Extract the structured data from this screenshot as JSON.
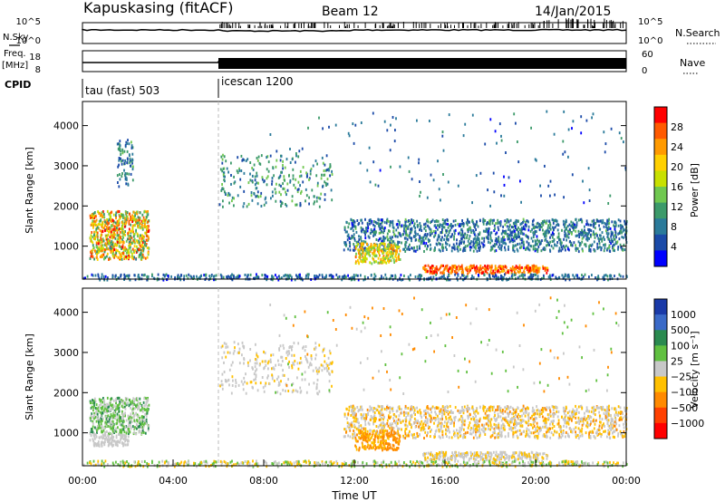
{
  "header": {
    "station": "Kapuskasing (fitACF)",
    "beam": "Beam 12",
    "date": "14/Jan/2015"
  },
  "top_panels": {
    "nsky_label": "N.Sky",
    "nsky_ticks": [
      "10^5",
      "10^0"
    ],
    "nsearch_label": "N.Search",
    "nsearch_ticks": [
      "10^5",
      "10^0"
    ],
    "freq_label": "Freq.",
    "freq_unit": "[MHz]",
    "freq_ticks": [
      "18",
      "8"
    ],
    "nave_label": "Nave",
    "nave_ticks": [
      "60",
      "0"
    ],
    "cpid_label": "CPID",
    "cpid_segments": [
      {
        "label": "tau (fast) 503",
        "start_hour": 0
      },
      {
        "label": "icescan 1200",
        "start_hour": 6
      }
    ]
  },
  "chart_data": [
    {
      "type": "heatmap",
      "title": "",
      "xlabel": "",
      "ylabel": "Slant Range [km]",
      "xlim": [
        0,
        24
      ],
      "ylim": [
        180,
        4600
      ],
      "x_ticks": [
        "00:00",
        "04:00",
        "08:00",
        "12:00",
        "16:00",
        "20:00",
        "00:00"
      ],
      "y_ticks": [
        1000,
        2000,
        3000,
        4000
      ],
      "colorbar": {
        "label": "Power [dB]",
        "ticks": [
          "28",
          "24",
          "20",
          "16",
          "12",
          "8",
          "4"
        ],
        "colors": [
          "#ff0000",
          "#ff5a00",
          "#ff9a00",
          "#ffd000",
          "#c8e000",
          "#70c850",
          "#3c9a6a",
          "#2a7a9a",
          "#1a4aa8",
          "#0000ff"
        ]
      },
      "features": [
        {
          "desc_time": [
            0.3,
            2.9
          ],
          "range_km": [
            700,
            1900
          ],
          "power_db": 20
        },
        {
          "desc_time": [
            6.0,
            11.0
          ],
          "range_km": [
            2000,
            3300
          ],
          "power_db": 10
        },
        {
          "desc_time": [
            11.5,
            24.0
          ],
          "range_km": [
            700,
            1700
          ],
          "power_db": 10
        },
        {
          "desc_time": [
            15.0,
            20.5
          ],
          "range_km": [
            350,
            550
          ],
          "power_db": 26
        }
      ]
    },
    {
      "type": "heatmap",
      "title": "",
      "xlabel": "Time UT",
      "ylabel": "Slant Range [km]",
      "xlim": [
        0,
        24
      ],
      "ylim": [
        180,
        4600
      ],
      "x_ticks": [
        "00:00",
        "04:00",
        "08:00",
        "12:00",
        "16:00",
        "20:00",
        "00:00"
      ],
      "y_ticks": [
        1000,
        2000,
        3000,
        4000
      ],
      "colorbar": {
        "label": "Velocity [m s⁻¹]",
        "ticks": [
          "1000",
          "500",
          "100",
          "25",
          "−25",
          "−100",
          "−500",
          "−1000"
        ],
        "colors": [
          "#1a3aa8",
          "#3a6ac8",
          "#2a8a50",
          "#60c040",
          "#c8c8c8",
          "#ffc000",
          "#ff8a00",
          "#ff4000",
          "#ff0000"
        ]
      }
    }
  ]
}
